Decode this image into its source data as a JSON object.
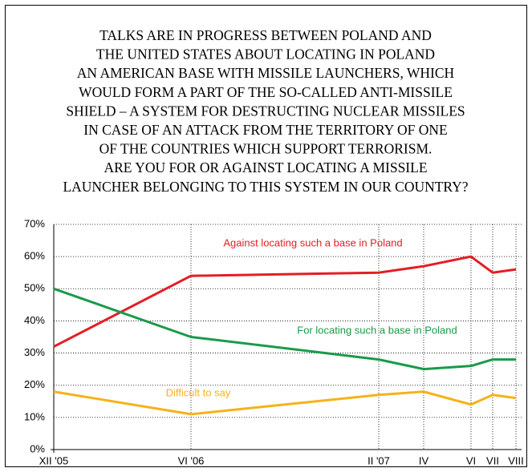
{
  "chart_data": {
    "type": "line",
    "title_lines": [
      "TALKS ARE IN PROGRESS BETWEEN POLAND AND",
      "THE UNITED STATES ABOUT LOCATING IN POLAND",
      "AN AMERICAN BASE WITH MISSILE LAUNCHERS, WHICH",
      "WOULD FORM A PART OF THE SO-CALLED ANTI-MISSILE",
      "SHIELD – A SYSTEM FOR DESTRUCTING NUCLEAR MISSILES",
      "IN CASE OF AN ATTACK FROM THE TERRITORY OF ONE",
      "OF THE COUNTRIES WHICH SUPPORT TERRORISM.",
      "ARE YOU FOR OR AGAINST LOCATING A MISSILE",
      "LAUNCHER BELONGING TO THIS SYSTEM IN OUR COUNTRY?"
    ],
    "categories": [
      "XII '05",
      "VI '06",
      "II '07",
      "IV",
      "VI",
      "VII",
      "VIII"
    ],
    "series": [
      {
        "name": "Against locating such a base in Poland",
        "color": "#e31e24",
        "values": [
          32,
          54,
          55,
          57,
          60,
          55,
          56
        ]
      },
      {
        "name": "For locating such a base in Poland",
        "color": "#1a9a4a",
        "values": [
          50,
          35,
          28,
          25,
          26,
          28,
          28
        ]
      },
      {
        "name": "Difficult to say",
        "color": "#f5b21a",
        "values": [
          18,
          11,
          17,
          18,
          14,
          17,
          16
        ]
      }
    ],
    "ylim": [
      0,
      70
    ],
    "yticks": [
      {
        "value": 0,
        "label": "0%"
      },
      {
        "value": 10,
        "label": "10%"
      },
      {
        "value": 20,
        "label": "20%"
      },
      {
        "value": 30,
        "label": "30%"
      },
      {
        "value": 40,
        "label": "40%"
      },
      {
        "value": 50,
        "label": "50%"
      },
      {
        "value": 60,
        "label": "60%"
      },
      {
        "value": 70,
        "label": "70%"
      }
    ],
    "grid": true
  }
}
